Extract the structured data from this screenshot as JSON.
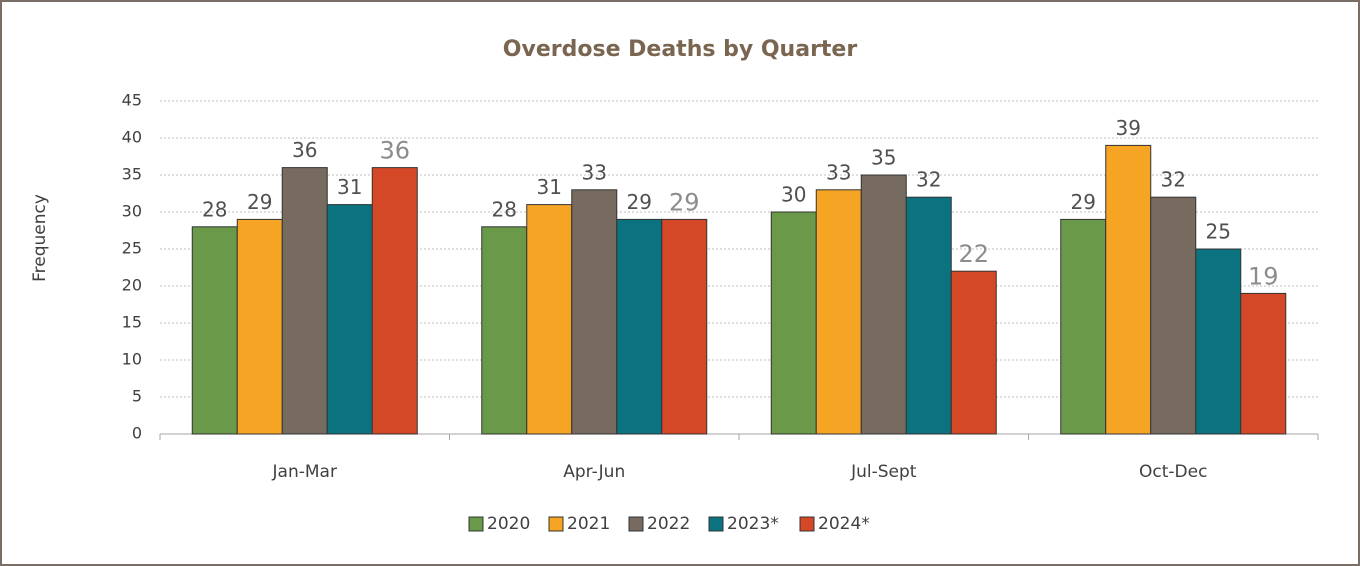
{
  "chart_data": {
    "type": "bar",
    "title": "Overdose Deaths by Quarter",
    "y_label": "Frequency",
    "categories": [
      "Jan-Mar",
      "Apr-Jun",
      "Jul-Sept",
      "Oct-Dec"
    ],
    "series": [
      {
        "name": "2020",
        "color": "#6a994a",
        "values": [
          28,
          28,
          30,
          29
        ]
      },
      {
        "name": "2021",
        "color": "#f5a523",
        "values": [
          29,
          31,
          33,
          39
        ]
      },
      {
        "name": "2022",
        "color": "#776a5f",
        "values": [
          36,
          33,
          35,
          32
        ]
      },
      {
        "name": "2023*",
        "color": "#0b7280",
        "values": [
          31,
          29,
          32,
          25
        ]
      },
      {
        "name": "2024*",
        "color": "#d44727",
        "values": [
          36,
          29,
          22,
          19
        ]
      }
    ],
    "ylim": [
      0,
      45
    ],
    "yticks": [
      0,
      5,
      10,
      15,
      20,
      25,
      30,
      35,
      40,
      45
    ],
    "grid": true,
    "legend": "bottom"
  }
}
